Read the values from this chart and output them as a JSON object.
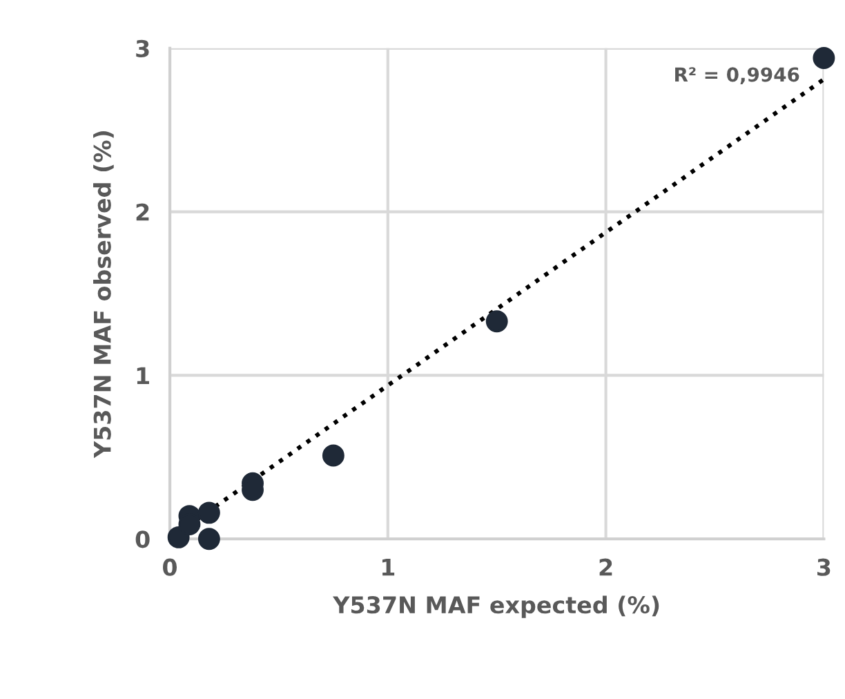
{
  "chart_data": {
    "type": "scatter",
    "xlabel": "Y537N MAF expected (%)",
    "ylabel": "Y537N MAF observed (%)",
    "x": [
      0.04,
      0.18,
      0.09,
      0.09,
      0.18,
      0.38,
      0.38,
      0.75,
      1.5,
      3
    ],
    "series": [
      {
        "color": "#1f2937",
        "marker": "circle",
        "values": [
          0.01,
          0,
          0.14,
          0.09,
          0.16,
          0.34,
          0.3,
          0.51,
          1.33,
          2.94
        ]
      },
      {
        "type": "line",
        "color": "#000000",
        "line_style": "dotted",
        "x": [
          0.04,
          3
        ],
        "values": [
          0.04,
          2.81
        ]
      }
    ],
    "annotations": [
      "R² = 0,9946"
    ],
    "xlim": [
      0,
      3
    ],
    "ylim": [
      0,
      3
    ],
    "xticks": [
      0,
      1,
      2,
      3
    ],
    "yticks": [
      0,
      1,
      2,
      3
    ],
    "grid": true
  }
}
